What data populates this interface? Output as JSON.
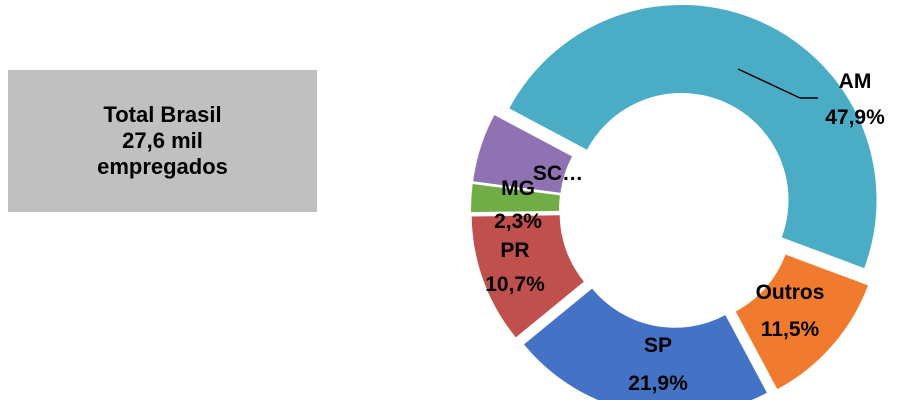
{
  "total_box": {
    "line1": "Total Brasil",
    "line2": "27,6 mil",
    "line3": "empregados"
  },
  "chart_data": {
    "type": "pie",
    "variant": "donut",
    "title": "",
    "slices": [
      {
        "label": "AM",
        "value_label": "47,9%",
        "value": 47.9,
        "color": "#4bacc6"
      },
      {
        "label": "Outros",
        "value_label": "11,5%",
        "value": 11.5,
        "color": "#f07b2e"
      },
      {
        "label": "SP",
        "value_label": "21,9%",
        "value": 21.9,
        "color": "#4472c4"
      },
      {
        "label": "PR",
        "value_label": "10,7%",
        "value": 10.7,
        "color": "#c0504d"
      },
      {
        "label": "MG",
        "value_label": "2,3%",
        "value": 2.3,
        "color": "#70ad47"
      },
      {
        "label": "SC…",
        "value_label": "",
        "value": 5.7,
        "color": "#8e72b1"
      }
    ]
  }
}
